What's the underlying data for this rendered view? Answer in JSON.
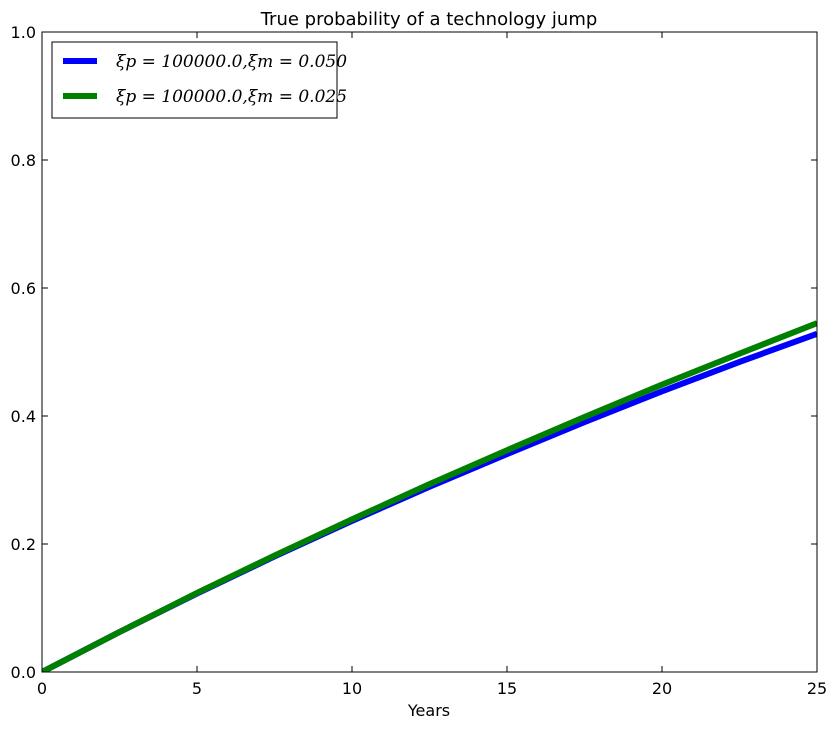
{
  "chart_data": {
    "type": "line",
    "title": "True probability of a technology jump",
    "xlabel": "Years",
    "ylabel": "",
    "xlim": [
      0,
      25
    ],
    "ylim": [
      0,
      1.0
    ],
    "xticks": [
      "0",
      "5",
      "10",
      "15",
      "20",
      "25"
    ],
    "yticks": [
      "0.0",
      "0.2",
      "0.4",
      "0.6",
      "0.8",
      "1.0"
    ],
    "grid": false,
    "legend_position": "upper-left",
    "series": [
      {
        "name": "ξp = 100000.0,ξm = 0.050",
        "color": "#0000ff",
        "x": [
          0,
          2.5,
          5,
          7.5,
          10,
          12.5,
          15,
          17.5,
          20,
          22.5,
          25
        ],
        "y": [
          0.0,
          0.0625,
          0.1225,
          0.1805,
          0.236,
          0.2895,
          0.3405,
          0.3905,
          0.4385,
          0.4845,
          0.5285
        ]
      },
      {
        "name": "ξp = 100000.0,ξm = 0.025",
        "color": "#008000",
        "x": [
          0,
          2.5,
          5,
          7.5,
          10,
          12.5,
          15,
          17.5,
          20,
          22.5,
          25
        ],
        "y": [
          0.0,
          0.0625,
          0.1235,
          0.182,
          0.2385,
          0.2935,
          0.3465,
          0.3985,
          0.449,
          0.4975,
          0.545
        ]
      }
    ]
  }
}
